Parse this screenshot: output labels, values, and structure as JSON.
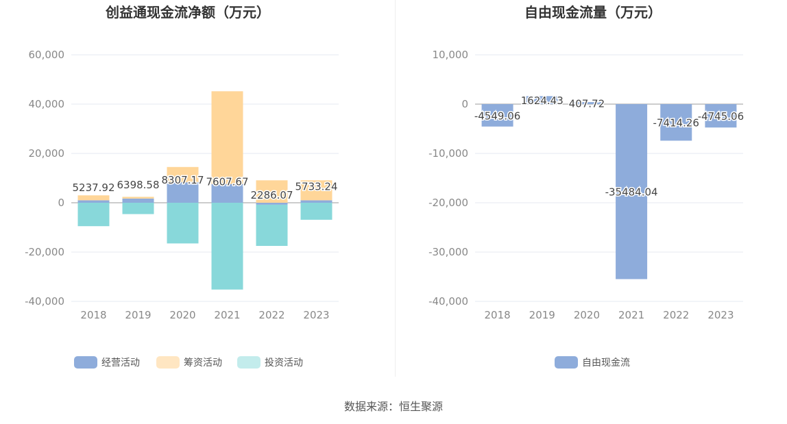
{
  "chart_data": [
    {
      "type": "bar",
      "stacked": true,
      "title": "创益通现金流净额（万元）",
      "categories": [
        "2018",
        "2019",
        "2020",
        "2021",
        "2022",
        "2023"
      ],
      "ylim": [
        -40000,
        60000
      ],
      "yticks": [
        60000,
        40000,
        20000,
        0,
        -20000,
        -40000
      ],
      "ytick_labels": [
        "60,000",
        "40,000",
        "20,000",
        "0",
        "-20,000",
        "-40,000"
      ],
      "series": [
        {
          "name": "经营活动",
          "color": "#8eacdb",
          "values": [
            1000,
            1700,
            8307.17,
            7607.67,
            -800,
            1000
          ]
        },
        {
          "name": "筹资活动",
          "color": "#ffd699",
          "values": [
            2000,
            700,
            6200,
            37600,
            9100,
            8100
          ]
        },
        {
          "name": "投资活动",
          "color": "#88d8da",
          "values": [
            -9500,
            -4600,
            -16500,
            -35200,
            -16700,
            -6900
          ]
        }
      ],
      "net_values": [
        5237.92,
        6398.58,
        8307.17,
        7607.67,
        2286.07,
        5733.24
      ],
      "net_labels": [
        "5237.92",
        "6398.58",
        "8307.17",
        "7607.67",
        "2286.07",
        "5733.24"
      ],
      "legend": [
        "经营活动",
        "筹资活动",
        "投资活动"
      ],
      "legend_colors": [
        "#8eacdb",
        "#ffe6c2",
        "#c3ecec"
      ]
    },
    {
      "type": "bar",
      "title": "自由现金流量（万元）",
      "categories": [
        "2018",
        "2019",
        "2020",
        "2021",
        "2022",
        "2023"
      ],
      "ylim": [
        -40000,
        10000
      ],
      "yticks": [
        10000,
        0,
        -10000,
        -20000,
        -30000,
        -40000
      ],
      "ytick_labels": [
        "10,000",
        "0",
        "-10,000",
        "-20,000",
        "-30,000",
        "-40,000"
      ],
      "series": [
        {
          "name": "自由现金流",
          "color": "#8eacdb",
          "values": [
            -4549.06,
            1624.43,
            407.72,
            -35484.04,
            -7414.26,
            -4745.06
          ]
        }
      ],
      "value_labels": [
        "-4549.06",
        "1624.43",
        "407.72",
        "-35484.04",
        "-7414.26",
        "-4745.06"
      ],
      "legend": [
        "自由现金流"
      ],
      "legend_colors": [
        "#8eacdb"
      ]
    }
  ],
  "source": "数据来源：恒生聚源"
}
